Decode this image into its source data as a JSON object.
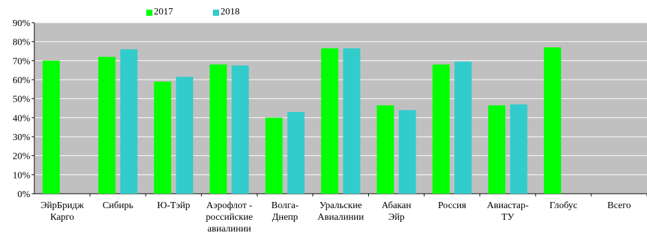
{
  "chart_data": {
    "type": "bar",
    "title": "",
    "xlabel": "",
    "ylabel": "",
    "categories": [
      [
        "ЭйрБридж",
        "Карго"
      ],
      [
        "Сибирь"
      ],
      [
        "Ю-Тэйр"
      ],
      [
        "Аэрофлот -",
        "российские",
        "авиалинии"
      ],
      [
        "Волга-",
        "Днепр"
      ],
      [
        "Уральские",
        "Авиалинии"
      ],
      [
        "Абакан",
        "Эйр"
      ],
      [
        "Россия"
      ],
      [
        "Авиастар-",
        "ТУ"
      ],
      [
        "Глобус"
      ],
      [
        "Всего"
      ]
    ],
    "series": [
      {
        "name": "2017",
        "color": "#00ff00",
        "values": [
          70,
          72,
          59,
          68,
          40,
          76.5,
          46.5,
          68,
          46.5,
          77,
          null
        ]
      },
      {
        "name": "2018",
        "color": "#33cccc",
        "values": [
          null,
          76,
          61.5,
          67.5,
          43,
          76.5,
          44,
          69.5,
          47,
          null,
          null
        ]
      }
    ],
    "y_ticks": [
      "0%",
      "10%",
      "20%",
      "30%",
      "40%",
      "50%",
      "60%",
      "70%",
      "80%",
      "90%"
    ],
    "ylim": [
      0,
      90
    ],
    "grid": true,
    "legend_position": "top-left"
  }
}
